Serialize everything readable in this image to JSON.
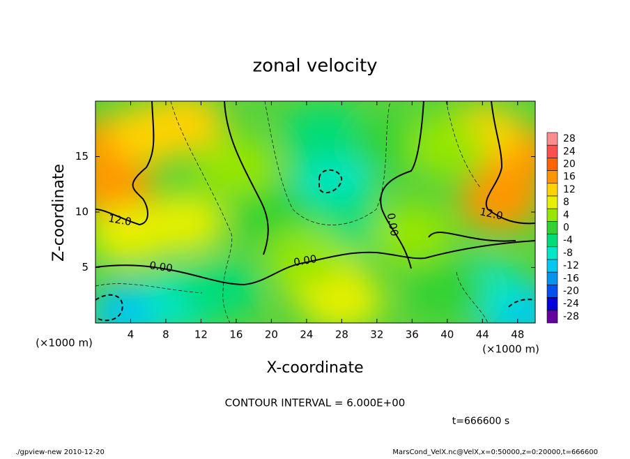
{
  "chart_data": {
    "type": "contour",
    "title": "zonal velocity",
    "x_label": "X-coordinate",
    "y_label": "Z-coordinate",
    "axis_unit": "(×1000 m)",
    "xlim": [
      0,
      50
    ],
    "xticks": [
      4,
      8,
      12,
      16,
      20,
      24,
      28,
      32,
      36,
      40,
      44,
      48
    ],
    "ylim": [
      0,
      20
    ],
    "yticks": [
      5,
      10,
      15
    ],
    "colorbar": {
      "levels": [
        28,
        24,
        20,
        16,
        12,
        8,
        4,
        0,
        -4,
        -8,
        -12,
        -16,
        -20,
        -24,
        -28
      ],
      "colors": [
        "#ff8c8c",
        "#ff5050",
        "#ff6400",
        "#ff9600",
        "#ffd200",
        "#e6f000",
        "#96e600",
        "#32d232",
        "#00dc78",
        "#00e6c8",
        "#00c8f0",
        "#0096f0",
        "#0050f0",
        "#0000dc",
        "#6400a0"
      ]
    },
    "field": {
      "x": [
        2,
        2,
        6,
        10,
        4,
        10,
        27,
        26,
        28,
        48,
        46,
        44,
        4,
        10,
        14,
        28,
        26,
        48,
        44,
        20,
        36,
        40,
        16,
        34,
        24,
        40
      ],
      "z": [
        16,
        12,
        17,
        18,
        8,
        9,
        13,
        17,
        9,
        15,
        11,
        17,
        1,
        2,
        3,
        2,
        4,
        1,
        3,
        10,
        8,
        3,
        14,
        16,
        6,
        16
      ],
      "values": [
        16,
        14,
        12,
        10,
        8,
        6,
        -10,
        -6,
        -6,
        16,
        16,
        10,
        -12,
        -8,
        -6,
        8,
        6,
        -12,
        -8,
        0,
        2,
        0,
        2,
        0,
        2,
        4
      ]
    },
    "contours": [
      {
        "value": 12,
        "label": "12.0"
      },
      {
        "value": 0,
        "label": "0.00"
      }
    ],
    "contour_interval": "CONTOUR INTERVAL = 6.000E+00",
    "time": "t=666600 s",
    "footer_left": "./gpview-new  2010-12-20",
    "footer_right": "MarsCond_VelX.nc@VelX,x=0:50000,z=0:20000,t=666600"
  }
}
